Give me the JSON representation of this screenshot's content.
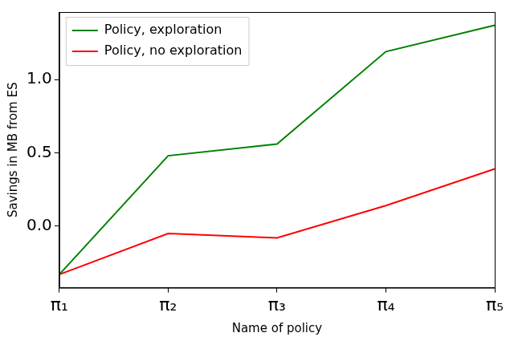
{
  "chart_data": {
    "type": "line",
    "x_label": "Name of policy",
    "y_label": "Savings in MB from ES",
    "categories": [
      "π₁",
      "π₂",
      "π₃",
      "π₄",
      "π₅"
    ],
    "series": [
      {
        "name": "Policy, exploration",
        "color": "#008000",
        "values": [
          -0.33,
          0.48,
          0.56,
          1.19,
          1.37
        ]
      },
      {
        "name": "Policy, no exploration",
        "color": "#ff0000",
        "values": [
          -0.33,
          -0.05,
          -0.08,
          0.14,
          0.39
        ]
      }
    ],
    "ylim": [
      -0.42,
      1.46
    ],
    "yticks": [
      {
        "value": 0,
        "label": "0.0"
      },
      {
        "value": 0.5,
        "label": "0.5"
      },
      {
        "value": 1,
        "label": "1.0"
      }
    ],
    "grid": false,
    "legend": "upper left"
  }
}
